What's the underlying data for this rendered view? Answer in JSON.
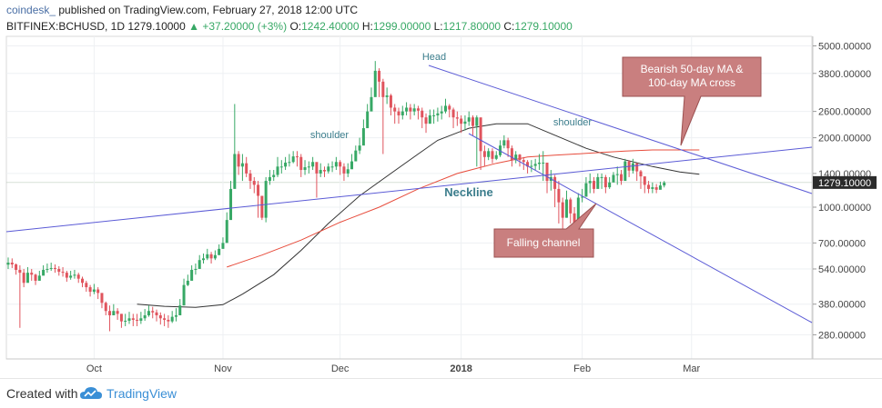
{
  "header": {
    "brand": "coindesk_",
    "publish_text": " published on TradingView.com, February 27, 2018 12:00 UTC",
    "symbol": "BITFINEX:BCHUSD, 1D",
    "last": "1279.10000",
    "change": "+37.20000 (+3%)",
    "o_label": "O:",
    "o_value": "1242.40000",
    "h_label": "H:",
    "h_value": "1299.00000",
    "l_label": "L:",
    "l_value": "1217.80000",
    "c_label": "C:",
    "c_value": "1279.10000"
  },
  "footer": {
    "created_with": "Created with",
    "tradingview": "TradingView"
  },
  "colors": {
    "up": "#37a865",
    "down": "#e0545d",
    "ma50": "#333333",
    "ma100": "#e74c3c",
    "trendline": "#5b5bd6",
    "label_text": "#3b7d8c",
    "callout_fill": "#c97f7f",
    "price_tag": "#2b2b2b"
  },
  "chart_data": {
    "type": "candlestick",
    "y_scale": "log",
    "ylim": [
      220,
      5500
    ],
    "y_ticks": [
      "5000.00000",
      "3800.00000",
      "2600.00000",
      "2000.00000",
      "1400.00000",
      "1000.00000",
      "700.00000",
      "540.00000",
      "380.00000",
      "280.00000"
    ],
    "x_ticks": [
      "Oct",
      "Nov",
      "Dec",
      "2018",
      "Feb",
      "Mar"
    ],
    "current_price_label": "1279.10000",
    "annotations": {
      "head": "Head",
      "shoulder_left": "shoulder",
      "shoulder_right": "shoulder",
      "neckline": "Neckline",
      "callout_cross": [
        "Bearish 50-day MA &",
        "100-day MA cross"
      ],
      "callout_channel": "Falling channel"
    },
    "series": [
      {
        "kind": "candles",
        "closes": [
          575,
          565,
          535,
          520,
          470,
          520,
          510,
          480,
          505,
          535,
          540,
          545,
          540,
          525,
          520,
          495,
          505,
          510,
          490,
          470,
          450,
          430,
          440,
          425,
          385,
          355,
          340,
          355,
          345,
          320,
          322,
          330,
          325,
          322,
          330,
          340,
          355,
          350,
          340,
          330,
          325,
          320,
          335,
          340,
          375,
          460,
          480,
          535,
          540,
          590,
          600,
          625,
          600,
          620,
          660,
          700,
          880,
          1200,
          1700,
          1500,
          1550,
          1400,
          1300,
          1250,
          1120,
          900,
          1300,
          1350,
          1380,
          1500,
          1500,
          1560,
          1570,
          1660,
          1650,
          1450,
          1490,
          1500,
          1570,
          1400,
          1450,
          1430,
          1500,
          1500,
          1570,
          1500,
          1400,
          1460,
          1580,
          1760,
          1850,
          2200,
          2600,
          3000,
          3900,
          3500,
          3000,
          3050,
          2700,
          2600,
          2500,
          2600,
          2700,
          2600,
          2680,
          2620,
          2450,
          2300,
          2500,
          2500,
          2550,
          2600,
          2750,
          2650,
          2450,
          2420,
          2300,
          2350,
          2450,
          2250,
          2450,
          1750,
          1650,
          1750,
          1620,
          1680,
          1850,
          1950,
          1800,
          1600,
          1690,
          1600,
          1570,
          1500,
          1510,
          1540,
          1560,
          1560,
          1300,
          1350,
          1200,
          1050,
          900,
          1080,
          940,
          850,
          1100,
          1110,
          1270,
          1300,
          1200,
          1350,
          1350,
          1220,
          1280,
          1380,
          1390,
          1300,
          1580,
          1440,
          1550,
          1430,
          1360,
          1250,
          1200,
          1220,
          1190,
          1242,
          1279
        ],
        "lows": [
          540,
          545,
          510,
          300,
          450,
          500,
          480,
          460,
          485,
          515,
          520,
          530,
          520,
          505,
          500,
          475,
          485,
          490,
          470,
          450,
          430,
          410,
          420,
          400,
          365,
          340,
          290,
          340,
          325,
          300,
          305,
          312,
          305,
          305,
          312,
          322,
          335,
          330,
          320,
          310,
          305,
          300,
          315,
          320,
          355,
          430,
          455,
          505,
          510,
          560,
          570,
          590,
          570,
          590,
          620,
          660,
          840,
          1050,
          1300,
          1380,
          1300,
          1350,
          1200,
          1150,
          900,
          880,
          860,
          1250,
          1300,
          1350,
          1400,
          1450,
          1500,
          1550,
          1500,
          1350,
          1380,
          1400,
          1450,
          1100,
          1350,
          1350,
          1400,
          1420,
          1450,
          1380,
          1300,
          1350,
          1500,
          1600,
          1700,
          1950,
          2400,
          2700,
          3300,
          3000,
          1700,
          2800,
          2500,
          2300,
          2300,
          2400,
          2500,
          2400,
          2500,
          2400,
          2200,
          2100,
          2300,
          2300,
          2350,
          2400,
          2550,
          2450,
          2200,
          2250,
          2100,
          2150,
          2250,
          2050,
          1500,
          1450,
          1500,
          1600,
          1550,
          1600,
          1650,
          1800,
          1650,
          1500,
          1550,
          1500,
          1450,
          1400,
          1420,
          1440,
          1450,
          1300,
          1150,
          1180,
          1000,
          850,
          720,
          900,
          850,
          800,
          1000,
          1050,
          1200,
          1150,
          1150,
          1250,
          1200,
          1150,
          1200,
          1300,
          1250,
          1250,
          1400,
          1350,
          1400,
          1300,
          1200,
          1150,
          1150,
          1150,
          1150,
          1200,
          1218
        ],
        "highs": [
          605,
          600,
          570,
          560,
          540,
          550,
          540,
          515,
          530,
          560,
          570,
          575,
          565,
          555,
          550,
          530,
          530,
          535,
          520,
          500,
          480,
          460,
          465,
          450,
          420,
          390,
          375,
          380,
          365,
          345,
          345,
          352,
          345,
          345,
          352,
          362,
          375,
          370,
          360,
          350,
          345,
          340,
          355,
          365,
          400,
          490,
          510,
          560,
          570,
          620,
          630,
          660,
          640,
          650,
          690,
          740,
          950,
          1300,
          2800,
          1750,
          1700,
          1650,
          1450,
          1350,
          1300,
          1100,
          1350,
          1450,
          1450,
          1650,
          1600,
          1650,
          1700,
          1750,
          1750,
          1700,
          1600,
          1580,
          1650,
          1550,
          1550,
          1500,
          1550,
          1580,
          1650,
          1600,
          1550,
          1550,
          1700,
          1850,
          2000,
          2400,
          2800,
          3300,
          4300,
          4000,
          3600,
          3300,
          3100,
          2800,
          2700,
          2750,
          2850,
          2800,
          2800,
          2750,
          2700,
          2550,
          2650,
          2650,
          2700,
          2750,
          2950,
          2800,
          2700,
          2600,
          2500,
          2500,
          2600,
          2500,
          2500,
          2150,
          1850,
          1800,
          1800,
          1750,
          1950,
          2050,
          2000,
          1850,
          1750,
          1700,
          1650,
          1600,
          1600,
          1620,
          1700,
          1750,
          1550,
          1450,
          1380,
          1300,
          1100,
          1180,
          1100,
          1000,
          1150,
          1200,
          1350,
          1400,
          1350,
          1400,
          1400,
          1380,
          1350,
          1420,
          1500,
          1450,
          1620,
          1600,
          1620,
          1550,
          1450,
          1350,
          1300,
          1280,
          1260,
          1290,
          1299
        ]
      },
      {
        "kind": "ma50",
        "x_range_days": [
          33,
          177
        ],
        "values_at": [
          [
            33,
            380
          ],
          [
            40,
            372
          ],
          [
            48,
            368
          ],
          [
            55,
            378
          ],
          [
            60,
            420
          ],
          [
            68,
            510
          ],
          [
            75,
            650
          ],
          [
            82,
            850
          ],
          [
            90,
            1120
          ],
          [
            98,
            1400
          ],
          [
            105,
            1700
          ],
          [
            110,
            1950
          ],
          [
            118,
            2200
          ],
          [
            125,
            2300
          ],
          [
            133,
            2300
          ],
          [
            140,
            2050
          ],
          [
            148,
            1800
          ],
          [
            155,
            1650
          ],
          [
            165,
            1500
          ],
          [
            172,
            1420
          ],
          [
            177,
            1390
          ]
        ]
      },
      {
        "kind": "ma100",
        "x_range_days": [
          56,
          177
        ],
        "values_at": [
          [
            56,
            550
          ],
          [
            65,
            620
          ],
          [
            75,
            720
          ],
          [
            85,
            860
          ],
          [
            95,
            1000
          ],
          [
            105,
            1200
          ],
          [
            115,
            1400
          ],
          [
            125,
            1550
          ],
          [
            133,
            1650
          ],
          [
            140,
            1680
          ],
          [
            148,
            1710
          ],
          [
            158,
            1750
          ],
          [
            165,
            1770
          ],
          [
            172,
            1770
          ],
          [
            177,
            1770
          ]
        ]
      }
    ]
  }
}
